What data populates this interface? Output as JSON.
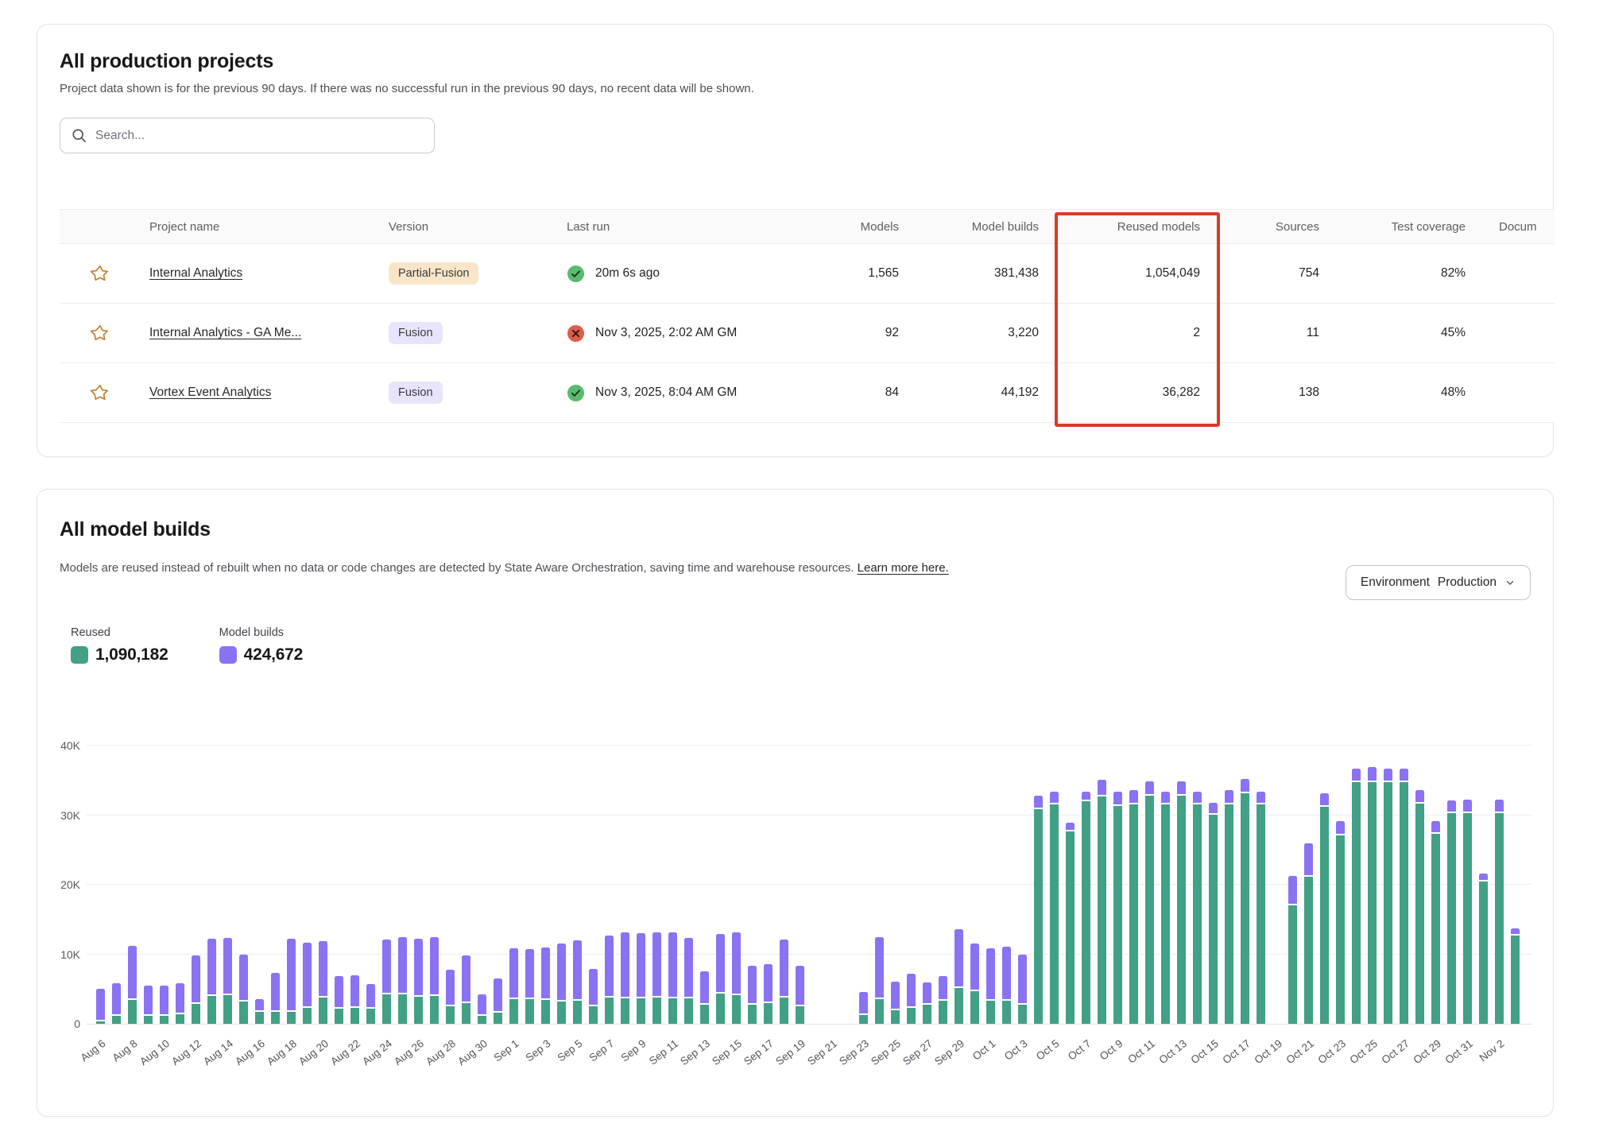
{
  "projects_card": {
    "title": "All production projects",
    "subtitle": "Project data shown is for the previous 90 days. If there was no successful run in the previous 90 days, no recent data will be shown.",
    "search_placeholder": "Search...",
    "columns": [
      "Project name",
      "Version",
      "Last run",
      "Models",
      "Model builds",
      "Reused models",
      "Sources",
      "Test coverage",
      "Docum"
    ],
    "rows": [
      {
        "name": "Internal Analytics",
        "version": "Partial-Fusion",
        "version_type": "partial",
        "last_run_status": "success",
        "last_run": "20m 6s ago",
        "models": "1,565",
        "model_builds": "381,438",
        "reused_models": "1,054,049",
        "sources": "754",
        "test_coverage": "82%"
      },
      {
        "name": "Internal Analytics - GA Me...",
        "version": "Fusion",
        "version_type": "fusion",
        "last_run_status": "error",
        "last_run": "Nov 3, 2025, 2:02 AM GM",
        "models": "92",
        "model_builds": "3,220",
        "reused_models": "2",
        "sources": "11",
        "test_coverage": "45%"
      },
      {
        "name": "Vortex Event Analytics",
        "version": "Fusion",
        "version_type": "fusion",
        "last_run_status": "success",
        "last_run": "Nov 3, 2025, 8:04 AM GM",
        "models": "84",
        "model_builds": "44,192",
        "reused_models": "36,282",
        "sources": "138",
        "test_coverage": "48%"
      }
    ],
    "annotation": {
      "type": "highlight-box",
      "column": "Reused models",
      "color": "#d93b27"
    },
    "status_colors": {
      "success": "#5abb6f",
      "error": "#dd5c4b"
    },
    "badge_colors": {
      "partial": "#f9e6c9",
      "fusion": "#e9e4fb"
    },
    "star_color": "#c77f2f"
  },
  "builds_card": {
    "title": "All model builds",
    "subtitle": "Models are reused instead of rebuilt when no data or code changes are detected by State Aware Orchestration, saving time and warehouse resources.",
    "learn_more": "Learn more here.",
    "env_label": "Environment",
    "env_value": "Production",
    "legend": [
      {
        "label": "Reused",
        "value": "1,090,182",
        "color": "#41a086"
      },
      {
        "label": "Model builds",
        "value": "424,672",
        "color": "#8b72f2"
      }
    ]
  },
  "chart_data": {
    "type": "stacked_bar",
    "title": "All model builds",
    "xlabel": "",
    "ylabel": "",
    "ylim": [
      0,
      40000
    ],
    "yticks": [
      "0",
      "10K",
      "20K",
      "30K",
      "40K"
    ],
    "x_tick_every": 2,
    "grid": true,
    "legend_position": "top-left",
    "x": [
      "Aug 6",
      "Aug 7",
      "Aug 8",
      "Aug 9",
      "Aug 10",
      "Aug 11",
      "Aug 12",
      "Aug 13",
      "Aug 14",
      "Aug 15",
      "Aug 16",
      "Aug 17",
      "Aug 18",
      "Aug 19",
      "Aug 20",
      "Aug 21",
      "Aug 22",
      "Aug 23",
      "Aug 24",
      "Aug 25",
      "Aug 26",
      "Aug 27",
      "Aug 28",
      "Aug 29",
      "Aug 30",
      "Aug 31",
      "Sep 1",
      "Sep 2",
      "Sep 3",
      "Sep 4",
      "Sep 5",
      "Sep 6",
      "Sep 7",
      "Sep 8",
      "Sep 9",
      "Sep 10",
      "Sep 11",
      "Sep 12",
      "Sep 13",
      "Sep 14",
      "Sep 15",
      "Sep 16",
      "Sep 17",
      "Sep 18",
      "Sep 19",
      "Sep 20",
      "Sep 21",
      "Sep 22",
      "Sep 23",
      "Sep 24",
      "Sep 25",
      "Sep 26",
      "Sep 27",
      "Sep 28",
      "Sep 29",
      "Sep 30",
      "Oct 1",
      "Oct 2",
      "Oct 3",
      "Oct 4",
      "Oct 5",
      "Oct 6",
      "Oct 7",
      "Oct 8",
      "Oct 9",
      "Oct 10",
      "Oct 11",
      "Oct 12",
      "Oct 13",
      "Oct 14",
      "Oct 15",
      "Oct 16",
      "Oct 17",
      "Oct 18",
      "Oct 19",
      "Oct 20",
      "Oct 21",
      "Oct 22",
      "Oct 23",
      "Oct 24",
      "Oct 25",
      "Oct 26",
      "Oct 27",
      "Oct 28",
      "Oct 29",
      "Oct 30",
      "Oct 31",
      "Nov 1",
      "Nov 2",
      "Nov 3"
    ],
    "series": [
      {
        "name": "Reused",
        "color": "#41a086",
        "values": [
          300,
          1200,
          3400,
          1100,
          1100,
          1400,
          2900,
          4000,
          4100,
          3200,
          1700,
          1700,
          1700,
          2300,
          3800,
          2200,
          2300,
          2200,
          4200,
          4200,
          3900,
          4000,
          2500,
          3000,
          1100,
          1600,
          3500,
          3500,
          3400,
          3200,
          3300,
          2500,
          3800,
          3700,
          3700,
          3800,
          3700,
          3700,
          2800,
          4300,
          4100,
          2800,
          3000,
          3800,
          2500,
          0,
          0,
          0,
          1300,
          3600,
          1900,
          2300,
          2800,
          3300,
          5100,
          4700,
          3300,
          3300,
          2700,
          30900,
          31600,
          27700,
          32000,
          32700,
          31300,
          31500,
          32800,
          31500,
          32800,
          31500,
          30100,
          31600,
          33100,
          31600,
          0,
          17000,
          21200,
          31200,
          27100,
          34700,
          34800,
          34700,
          34700,
          31700,
          27300,
          30300,
          30300,
          20500,
          30300,
          12700
        ]
      },
      {
        "name": "Model builds",
        "color": "#8b72f2",
        "values": [
          4700,
          4600,
          7800,
          4400,
          4400,
          4400,
          6900,
          8200,
          8200,
          6800,
          1900,
          5600,
          10500,
          9400,
          8100,
          4700,
          4700,
          3500,
          7900,
          8300,
          8300,
          8500,
          5300,
          6800,
          3100,
          4900,
          7400,
          7300,
          7600,
          8300,
          8700,
          5400,
          8900,
          9500,
          9300,
          9400,
          9500,
          8700,
          4800,
          8600,
          9100,
          5600,
          5600,
          8300,
          5800,
          0,
          0,
          0,
          3300,
          8900,
          4200,
          4900,
          3100,
          3600,
          8500,
          6800,
          7600,
          7800,
          7200,
          1900,
          1800,
          1200,
          1400,
          2400,
          2100,
          2100,
          2100,
          1900,
          2100,
          1900,
          1700,
          2000,
          2100,
          1800,
          0,
          4300,
          4700,
          2000,
          2000,
          2000,
          2100,
          2000,
          2000,
          1900,
          1800,
          1800,
          1900,
          1100,
          1900,
          1000
        ]
      }
    ]
  }
}
